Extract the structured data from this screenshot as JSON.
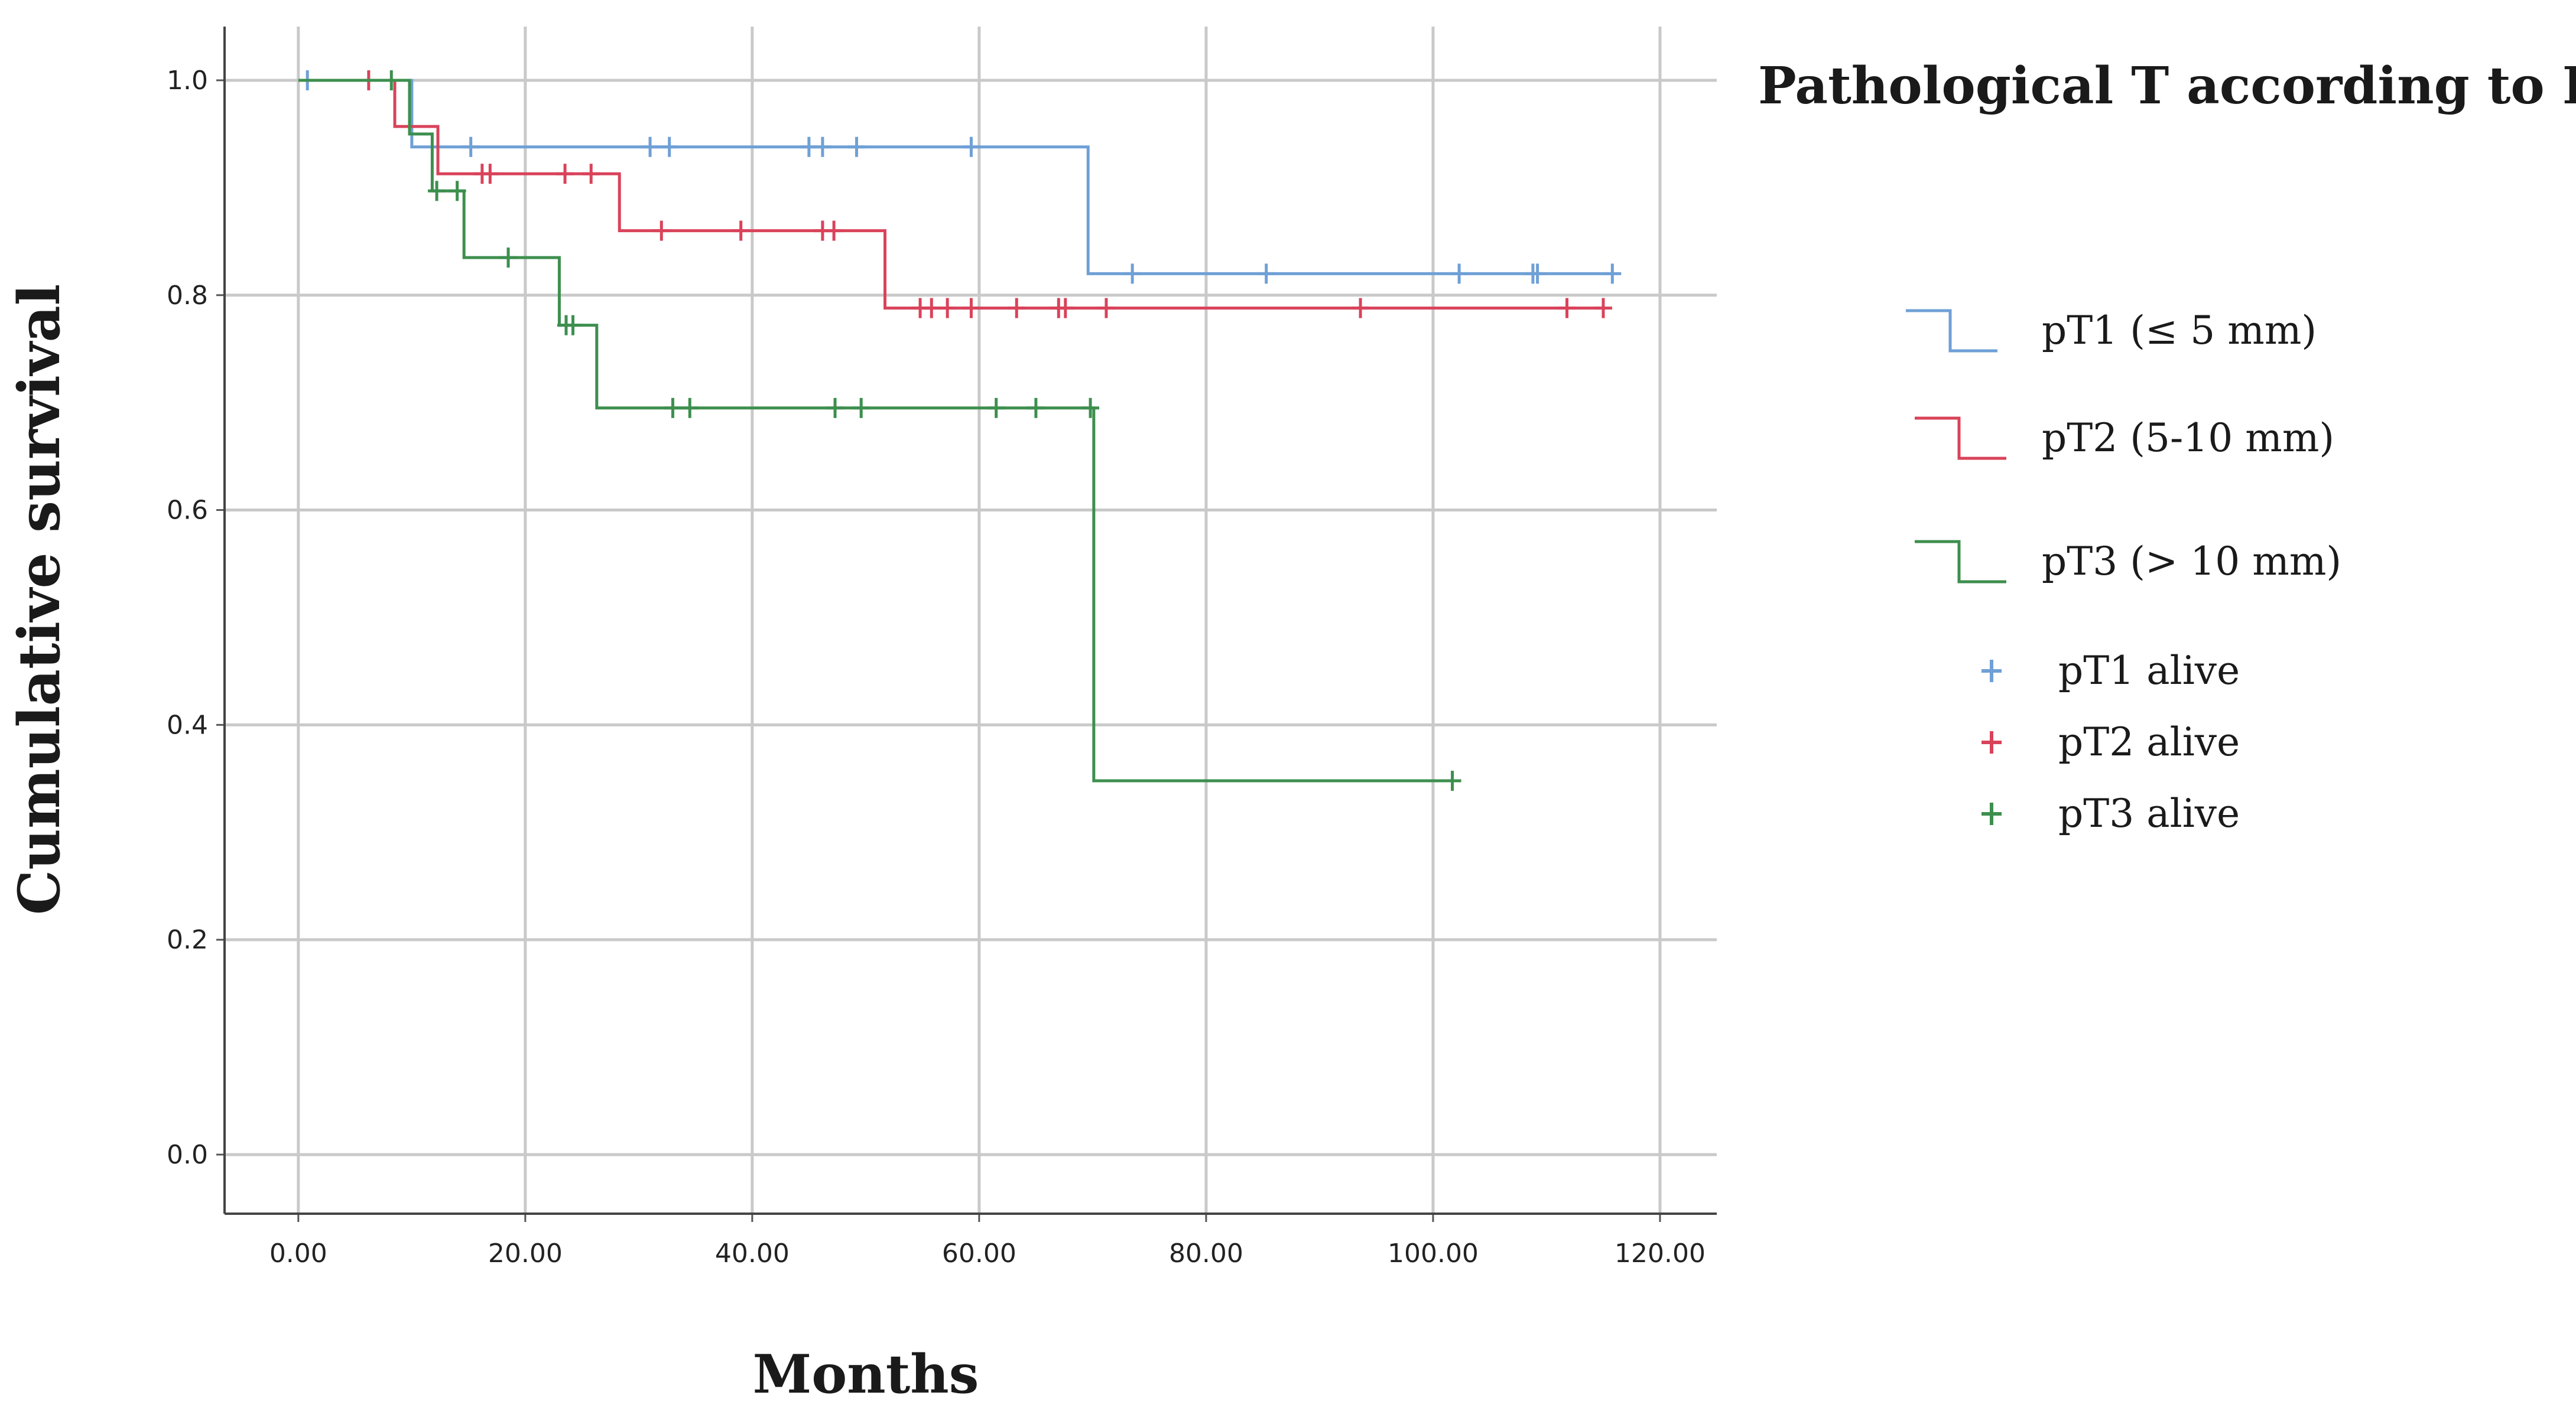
{
  "chart_data": {
    "type": "line",
    "subtype": "kaplan-meier",
    "title": "",
    "xlabel": "Months",
    "ylabel": "Cumulative survival",
    "xlim": [
      -6.5,
      125
    ],
    "ylim": [
      -0.055,
      1.05
    ],
    "x_ticks": [
      0,
      20,
      40,
      60,
      80,
      100,
      120
    ],
    "x_tick_labels": [
      "0.00",
      "20.00",
      "40.00",
      "60.00",
      "80.00",
      "100.00",
      "120.00"
    ],
    "y_ticks": [
      0,
      0.2,
      0.4,
      0.6,
      0.8,
      1.0
    ],
    "y_tick_labels": [
      "0.0",
      "0.2",
      "0.4",
      "0.6",
      "0.8",
      "1.0"
    ],
    "grid": true,
    "legend": {
      "title": "Pathological T according to DOI",
      "position": "right",
      "entries": [
        {
          "label": "pT1 (≤ 5 mm)",
          "kind": "line",
          "series": 0
        },
        {
          "label": "pT2 (5-10 mm)",
          "kind": "line",
          "series": 1
        },
        {
          "label": "pT3 (> 10 mm)",
          "kind": "line",
          "series": 2
        },
        {
          "label": "pT1 alive",
          "kind": "censor",
          "series": 0
        },
        {
          "label": "pT2 alive",
          "kind": "censor",
          "series": 1
        },
        {
          "label": "pT3 alive",
          "kind": "censor",
          "series": 2
        }
      ]
    },
    "series": [
      {
        "name": "pT1",
        "color": "#6fa0d6",
        "steps": [
          [
            0,
            1.0
          ],
          [
            10,
            0.938
          ],
          [
            69.6,
            0.82
          ],
          [
            116,
            0.82
          ]
        ],
        "censored": [
          [
            0.8,
            1.0
          ],
          [
            15.2,
            0.938
          ],
          [
            31,
            0.938
          ],
          [
            32.7,
            0.938
          ],
          [
            45,
            0.938
          ],
          [
            46.2,
            0.938
          ],
          [
            49.2,
            0.938
          ],
          [
            59.3,
            0.938
          ],
          [
            73.5,
            0.82
          ],
          [
            85.3,
            0.82
          ],
          [
            102.3,
            0.82
          ],
          [
            108.8,
            0.82
          ],
          [
            109.2,
            0.82
          ],
          [
            115.8,
            0.82
          ]
        ]
      },
      {
        "name": "pT2",
        "color": "#d9435a",
        "steps": [
          [
            0,
            1.0
          ],
          [
            8.5,
            0.957
          ],
          [
            12.3,
            0.913
          ],
          [
            28.3,
            0.86
          ],
          [
            51.7,
            0.788
          ],
          [
            115,
            0.788
          ]
        ],
        "censored": [
          [
            6.2,
            1.0
          ],
          [
            16.2,
            0.913
          ],
          [
            16.9,
            0.913
          ],
          [
            23.5,
            0.913
          ],
          [
            25.8,
            0.913
          ],
          [
            32,
            0.86
          ],
          [
            39,
            0.86
          ],
          [
            46.2,
            0.86
          ],
          [
            47.2,
            0.86
          ],
          [
            54.8,
            0.788
          ],
          [
            55.8,
            0.788
          ],
          [
            57.2,
            0.788
          ],
          [
            59.3,
            0.788
          ],
          [
            63.3,
            0.788
          ],
          [
            67,
            0.788
          ],
          [
            67.6,
            0.788
          ],
          [
            71.2,
            0.788
          ],
          [
            93.6,
            0.788
          ],
          [
            111.8,
            0.788
          ],
          [
            115,
            0.788
          ]
        ]
      },
      {
        "name": "pT3",
        "color": "#3d8f4e",
        "steps": [
          [
            0,
            1.0
          ],
          [
            9.8,
            0.95
          ],
          [
            11.8,
            0.897
          ],
          [
            14.6,
            0.835
          ],
          [
            23,
            0.772
          ],
          [
            26.3,
            0.695
          ],
          [
            70.1,
            0.348
          ],
          [
            101.7,
            0.348
          ]
        ],
        "censored": [
          [
            8.2,
            1.0
          ],
          [
            12.2,
            0.897
          ],
          [
            14,
            0.897
          ],
          [
            18.5,
            0.835
          ],
          [
            23.6,
            0.772
          ],
          [
            24.2,
            0.772
          ],
          [
            33,
            0.695
          ],
          [
            34.5,
            0.695
          ],
          [
            47.3,
            0.695
          ],
          [
            49.6,
            0.695
          ],
          [
            61.5,
            0.695
          ],
          [
            65,
            0.695
          ],
          [
            69.8,
            0.695
          ],
          [
            101.7,
            0.348
          ]
        ]
      }
    ]
  }
}
